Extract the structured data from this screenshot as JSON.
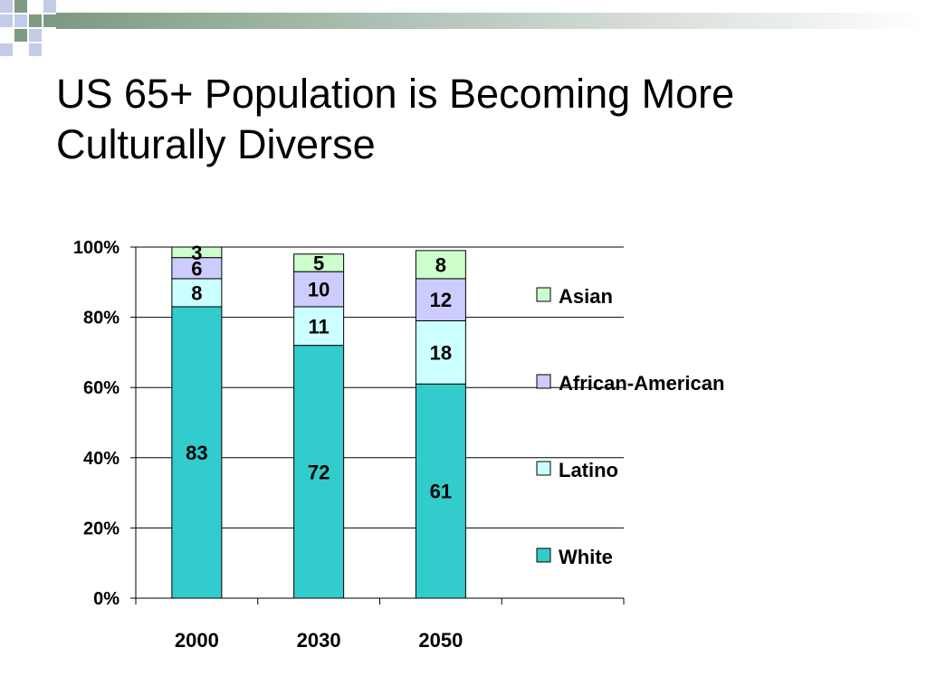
{
  "slide": {
    "title_line1": "US 65+ Population is Becoming More",
    "title_line2": "Culturally Diverse"
  },
  "colors": {
    "deco_dark": "#7e9a83",
    "deco_light": "#c3cbe7",
    "grid": "#000000"
  },
  "chart_data": {
    "type": "bar",
    "stacked": true,
    "percent": true,
    "categories": [
      "2000",
      "2030",
      "2050"
    ],
    "y_ticks": [
      "0%",
      "20%",
      "40%",
      "60%",
      "80%",
      "100%"
    ],
    "ylim": [
      0,
      100
    ],
    "grid": true,
    "legend_position": "right",
    "series": [
      {
        "name": "White",
        "values": [
          83,
          72,
          61
        ],
        "color": "#33cccc"
      },
      {
        "name": "Latino",
        "values": [
          8,
          11,
          18
        ],
        "color": "#ccffff"
      },
      {
        "name": "African-American",
        "values": [
          6,
          10,
          12
        ],
        "color": "#ccccff"
      },
      {
        "name": "Asian",
        "values": [
          3,
          5,
          8
        ],
        "color": "#ccffcc"
      }
    ]
  }
}
